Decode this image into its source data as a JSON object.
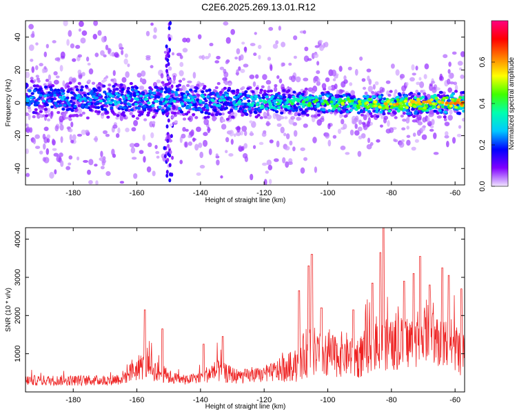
{
  "title": "C2E6.2025.269.13.01.R12",
  "chart_data": [
    {
      "type": "heatmap",
      "xlabel": "Height of straight line (km)",
      "ylabel": "Frequency (Hz)",
      "xlim": [
        -195,
        -57
      ],
      "ylim": [
        -50,
        50
      ],
      "xticks": [
        -180,
        -160,
        -140,
        -120,
        -100,
        -80,
        -60
      ],
      "yticks": [
        -40,
        -20,
        0,
        20,
        40
      ],
      "colorbar": {
        "label": "Normalized spectral amplitude",
        "ticks": [
          0.0,
          0.2,
          0.4,
          0.6
        ],
        "tick_labels": [
          "0.0",
          "0.2",
          "0.4",
          "0.6"
        ],
        "range": [
          0,
          0.8
        ],
        "colors": [
          "#f0e6ff",
          "#8000ff",
          "#0000ff",
          "#00c8ff",
          "#00ffb0",
          "#40ff00",
          "#ffff00",
          "#ff8000",
          "#ff0000",
          "#ff0080"
        ]
      },
      "bands": [
        {
          "x": -195,
          "center": 3,
          "halfwidth": 9,
          "amplitude": 0.25
        },
        {
          "x": -180,
          "center": 2,
          "halfwidth": 8,
          "amplitude": 0.25
        },
        {
          "x": -160,
          "center": 2,
          "halfwidth": 8,
          "amplitude": 0.3
        },
        {
          "x": -140,
          "center": 1,
          "halfwidth": 8,
          "amplitude": 0.3
        },
        {
          "x": -120,
          "center": 0,
          "halfwidth": 6,
          "amplitude": 0.35
        },
        {
          "x": -100,
          "center": 0,
          "halfwidth": 5,
          "amplitude": 0.45
        },
        {
          "x": -80,
          "center": -1,
          "halfwidth": 5,
          "amplitude": 0.55
        },
        {
          "x": -57,
          "center": 0,
          "halfwidth": 5,
          "amplitude": 0.6
        }
      ],
      "vertical_streaks": [
        -150
      ]
    },
    {
      "type": "line",
      "xlabel": "Height of straight line (km)",
      "ylabel": "SNR (10 * v/v)",
      "xlim": [
        -195,
        -57
      ],
      "ylim": [
        0,
        4300
      ],
      "xticks": [
        -180,
        -160,
        -140,
        -120,
        -100,
        -80,
        -60
      ],
      "yticks": [
        1000,
        2000,
        3000,
        4000
      ],
      "color": "#ee2222",
      "envelope": [
        {
          "x": -195,
          "base": 300,
          "amp": 250
        },
        {
          "x": -170,
          "base": 300,
          "amp": 250
        },
        {
          "x": -165,
          "base": 350,
          "amp": 300
        },
        {
          "x": -158,
          "base": 700,
          "amp": 700
        },
        {
          "x": -150,
          "base": 400,
          "amp": 350
        },
        {
          "x": -145,
          "base": 300,
          "amp": 200
        },
        {
          "x": -140,
          "base": 400,
          "amp": 300
        },
        {
          "x": -135,
          "base": 550,
          "amp": 550
        },
        {
          "x": -128,
          "base": 400,
          "amp": 350
        },
        {
          "x": -120,
          "base": 450,
          "amp": 350
        },
        {
          "x": -110,
          "base": 700,
          "amp": 800
        },
        {
          "x": -106,
          "base": 1100,
          "amp": 1300
        },
        {
          "x": -100,
          "base": 900,
          "amp": 1000
        },
        {
          "x": -95,
          "base": 1000,
          "amp": 1100
        },
        {
          "x": -90,
          "base": 900,
          "amp": 1000
        },
        {
          "x": -85,
          "base": 1300,
          "amp": 1300
        },
        {
          "x": -80,
          "base": 1200,
          "amp": 1200
        },
        {
          "x": -70,
          "base": 1400,
          "amp": 1400
        },
        {
          "x": -60,
          "base": 1200,
          "amp": 1300
        },
        {
          "x": -57,
          "base": 900,
          "amp": 1000
        }
      ],
      "peaks": [
        {
          "x": -157.5,
          "y": 2150
        },
        {
          "x": -152,
          "y": 1650
        },
        {
          "x": -139,
          "y": 1250
        },
        {
          "x": -133,
          "y": 1450
        },
        {
          "x": -109,
          "y": 2650
        },
        {
          "x": -106,
          "y": 3300
        },
        {
          "x": -105,
          "y": 3600
        },
        {
          "x": -102,
          "y": 2200
        },
        {
          "x": -92,
          "y": 2150
        },
        {
          "x": -86,
          "y": 2850
        },
        {
          "x": -83.5,
          "y": 3650
        },
        {
          "x": -82.5,
          "y": 4300
        },
        {
          "x": -76,
          "y": 2900
        },
        {
          "x": -73,
          "y": 3100
        },
        {
          "x": -71,
          "y": 3550
        },
        {
          "x": -68,
          "y": 2800
        },
        {
          "x": -64,
          "y": 3250
        },
        {
          "x": -62,
          "y": 3050
        },
        {
          "x": -58,
          "y": 2700
        }
      ]
    }
  ]
}
